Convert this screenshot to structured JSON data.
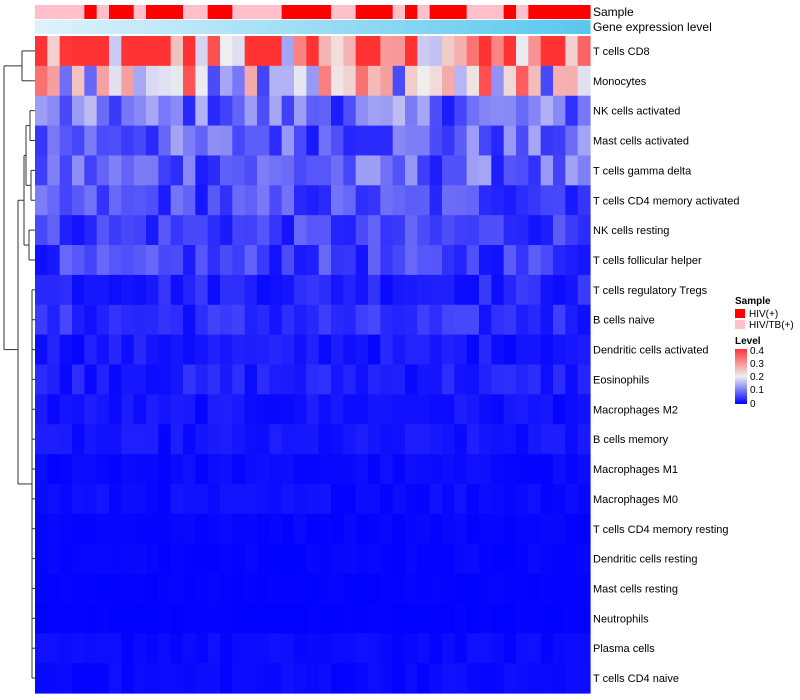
{
  "chart_data": {
    "type": "heatmap",
    "row_names": [
      "T cells CD8",
      "Monocytes",
      "NK cells activated",
      "Mast cells activated",
      "T cells gamma delta",
      "T cells CD4 memory activated",
      "NK cells resting",
      "T cells follicular helper",
      "T cells regulatory  Tregs",
      "B cells naive",
      "Dendritic cells activated",
      "Eosinophils",
      "Macrophages M2",
      "B cells memory",
      "Macrophages M1",
      "Macrophages M0",
      "T cells CD4 memory resting",
      "Dendritic cells resting",
      "Mast cells resting",
      "Neutrophils",
      "Plasma cells",
      "T cells CD4 naive"
    ],
    "row_means": [
      0.33,
      0.22,
      0.09,
      0.08,
      0.08,
      0.06,
      0.05,
      0.05,
      0.03,
      0.035,
      0.02,
      0.025,
      0.015,
      0.015,
      0.008,
      0.01,
      0.005,
      0.005,
      0.003,
      0.002,
      0.008,
      0.008
    ],
    "column_count": 45,
    "annotations": {
      "sample": {
        "label": "Sample",
        "pattern": [
          "HIV/TB(+)",
          "HIV/TB(+)",
          "HIV/TB(+)",
          "HIV/TB(+)",
          "HIV(+)",
          "HIV/TB(+)",
          "HIV(+)",
          "HIV(+)",
          "HIV/TB(+)",
          "HIV(+)",
          "HIV(+)",
          "HIV(+)",
          "HIV/TB(+)",
          "HIV/TB(+)",
          "HIV(+)",
          "HIV(+)",
          "HIV/TB(+)",
          "HIV/TB(+)",
          "HIV/TB(+)",
          "HIV/TB(+)",
          "HIV(+)",
          "HIV(+)",
          "HIV(+)",
          "HIV(+)",
          "HIV/TB(+)",
          "HIV/TB(+)",
          "HIV(+)",
          "HIV(+)",
          "HIV(+)",
          "HIV/TB(+)",
          "HIV(+)",
          "HIV/TB(+)",
          "HIV(+)",
          "HIV(+)",
          "HIV(+)",
          "HIV/TB(+)",
          "HIV/TB(+)",
          "HIV/TB(+)",
          "HIV(+)",
          "HIV/TB(+)",
          "HIV(+)",
          "HIV(+)",
          "HIV(+)",
          "HIV(+)",
          "HIV(+)"
        ]
      },
      "expression": {
        "label": "Gene expression level"
      }
    },
    "legend": {
      "sample_title": "Sample",
      "sample_entries": [
        {
          "name": "HIV(+)",
          "color": "#ff0000"
        },
        {
          "name": "HIV/TB(+)",
          "color": "#ffc0cb"
        }
      ],
      "level_title": "Level",
      "level_ticks": [
        "0.4",
        "0.3",
        "0.2",
        "0.1",
        "0"
      ],
      "level_range": [
        0,
        0.4
      ]
    },
    "color_scale": {
      "low": "#0000ff",
      "mid": "#f0f0f0",
      "high": "#ff3333",
      "mid_value": 0.2
    },
    "expression_colors": {
      "light": "#ddf2fb",
      "dark": "#5ac8ee"
    }
  }
}
